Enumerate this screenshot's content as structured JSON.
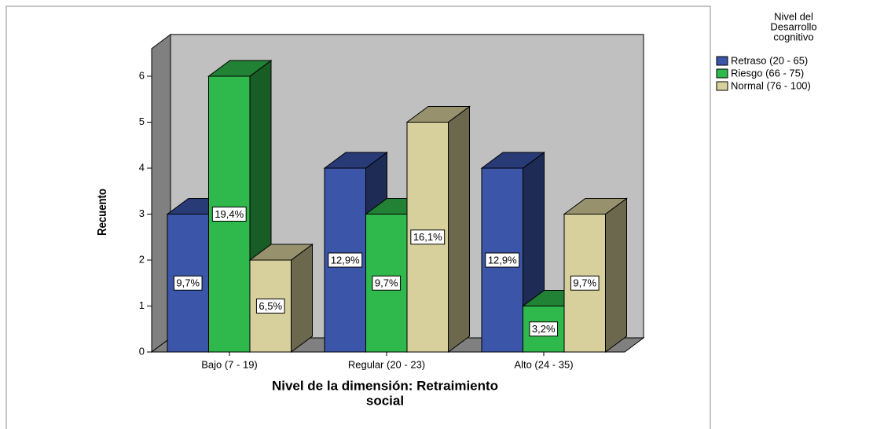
{
  "chart_data": {
    "type": "bar3d",
    "categories": [
      "Bajo (7 - 19)",
      "Regular (20 - 23)",
      "Alto (24 - 35)"
    ],
    "series": [
      {
        "name": "Retraso (20 - 65)",
        "color": "#3b55a8",
        "values": [
          3,
          4,
          4
        ],
        "percents": [
          9.7,
          12.9,
          12.9
        ],
        "percent_labels": [
          "9,7%",
          "12,9%",
          "12,9%"
        ]
      },
      {
        "name": "Riesgo (66 - 75)",
        "color": "#2fb84b",
        "values": [
          6,
          3,
          1
        ],
        "percents": [
          19.4,
          9.7,
          3.2
        ],
        "percent_labels": [
          "19,4%",
          "9,7%",
          "3,2%"
        ]
      },
      {
        "name": "Normal (76  - 100)",
        "color": "#d7d09c",
        "values": [
          2,
          5,
          3
        ],
        "percents": [
          6.5,
          16.1,
          9.7
        ],
        "percent_labels": [
          "6,5%",
          "16,1%",
          "9,7%"
        ]
      }
    ],
    "ylabel": "Recuento",
    "xlabel": [
      "Nivel de la dimensión: Retraimiento",
      "social"
    ],
    "legend_title": [
      "Nivel del",
      "Desarrollo",
      "cognitivo"
    ],
    "ylim": [
      0,
      6.6
    ],
    "yticks": [
      0,
      1,
      2,
      3,
      4,
      5,
      6
    ]
  }
}
